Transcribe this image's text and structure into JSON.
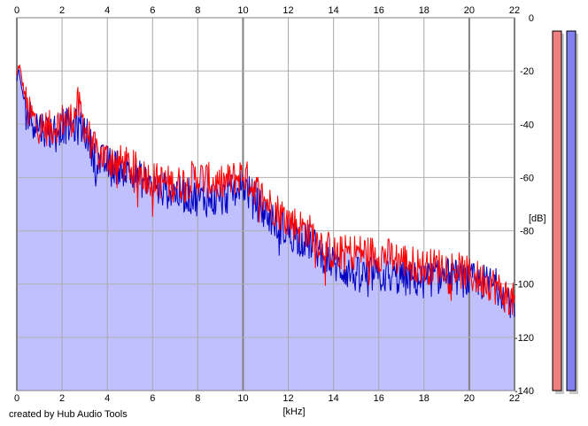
{
  "footer": {
    "credit": "created by Hub Audio Tools"
  },
  "chart_data": {
    "type": "area",
    "xlabel": "[kHz]",
    "ylabel": "[dB]",
    "xlim": [
      0,
      22
    ],
    "ylim": [
      -140,
      0
    ],
    "x_ticks": [
      "0",
      "2",
      "4",
      "6",
      "8",
      "10",
      "12",
      "14",
      "16",
      "18",
      "20",
      "22"
    ],
    "y_ticks": [
      "0",
      "-20",
      "-40",
      "-60",
      "-80",
      "-100",
      "-120",
      "-140"
    ],
    "grid": true,
    "colors": {
      "fill": "#c0c0ff",
      "series_red": "#ff0000",
      "series_blue": "#0000c0",
      "meter_red": "#f08080",
      "meter_blue": "#8080f0"
    },
    "series": [
      {
        "color": "red",
        "x": [
          0,
          0.1,
          0.2,
          0.5,
          1.0,
          1.5,
          2.0,
          2.5,
          2.7,
          3.0,
          3.5,
          4.0,
          5.0,
          6.0,
          7.0,
          8.0,
          9.0,
          10.0,
          11.0,
          12.0,
          13.0,
          14.0,
          15.0,
          16.0,
          17.0,
          18.0,
          19.0,
          20.0,
          21.0,
          21.5,
          22.0
        ],
        "y": [
          -22,
          -17,
          -22,
          -35,
          -40,
          -41,
          -38,
          -37,
          -32,
          -40,
          -50,
          -52,
          -55,
          -60,
          -62,
          -59,
          -62,
          -58,
          -68,
          -75,
          -80,
          -88,
          -87,
          -88,
          -90,
          -93,
          -92,
          -96,
          -99,
          -103,
          -106
        ]
      },
      {
        "color": "blue",
        "x": [
          0,
          0.1,
          0.2,
          0.5,
          1.0,
          1.5,
          2.0,
          2.5,
          3.0,
          3.5,
          4.0,
          5.0,
          6.0,
          7.0,
          8.0,
          9.0,
          10.0,
          11.0,
          12.0,
          13.0,
          14.0,
          15.0,
          16.0,
          17.0,
          18.0,
          19.0,
          20.0,
          21.0,
          21.5,
          22.0
        ],
        "y": [
          -24,
          -20,
          -26,
          -36,
          -40,
          -42,
          -40,
          -40,
          -41,
          -53,
          -54,
          -57,
          -63,
          -65,
          -67,
          -68,
          -62,
          -73,
          -80,
          -84,
          -92,
          -96,
          -96,
          -97,
          -98,
          -96,
          -98,
          -99,
          -102,
          -107
        ]
      }
    ],
    "meters": [
      {
        "color": "red",
        "value_db": -5
      },
      {
        "color": "blue",
        "value_db": -5
      }
    ]
  }
}
